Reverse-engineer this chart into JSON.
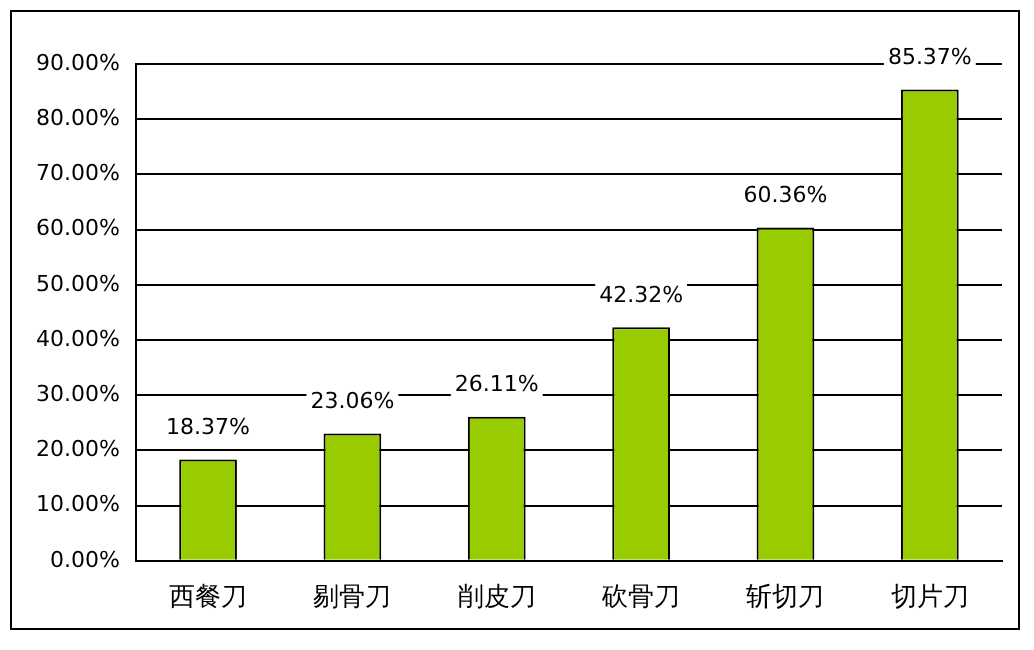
{
  "chart_data": {
    "type": "bar",
    "categories": [
      "西餐刀",
      "剔骨刀",
      "削皮刀",
      "砍骨刀",
      "斩切刀",
      "切片刀"
    ],
    "values": [
      18.37,
      23.06,
      26.11,
      42.32,
      60.36,
      85.37
    ],
    "color": "#99cc00",
    "value_labels": [
      "18.37%",
      "23.06%",
      "26.11%",
      "42.32%",
      "60.36%",
      "85.37%"
    ],
    "ylim": [
      0,
      90
    ],
    "yticks": [
      {
        "value": 0,
        "label": "0.00%"
      },
      {
        "value": 10,
        "label": "10.00%"
      },
      {
        "value": 20,
        "label": "20.00%"
      },
      {
        "value": 30,
        "label": "30.00%"
      },
      {
        "value": 40,
        "label": "40.00%"
      },
      {
        "value": 50,
        "label": "50.00%"
      },
      {
        "value": 60,
        "label": "60.00%"
      },
      {
        "value": 70,
        "label": "70.00%"
      },
      {
        "value": 80,
        "label": "80.00%"
      },
      {
        "value": 90,
        "label": "90.00%"
      }
    ],
    "grid": "y",
    "legend": false
  }
}
